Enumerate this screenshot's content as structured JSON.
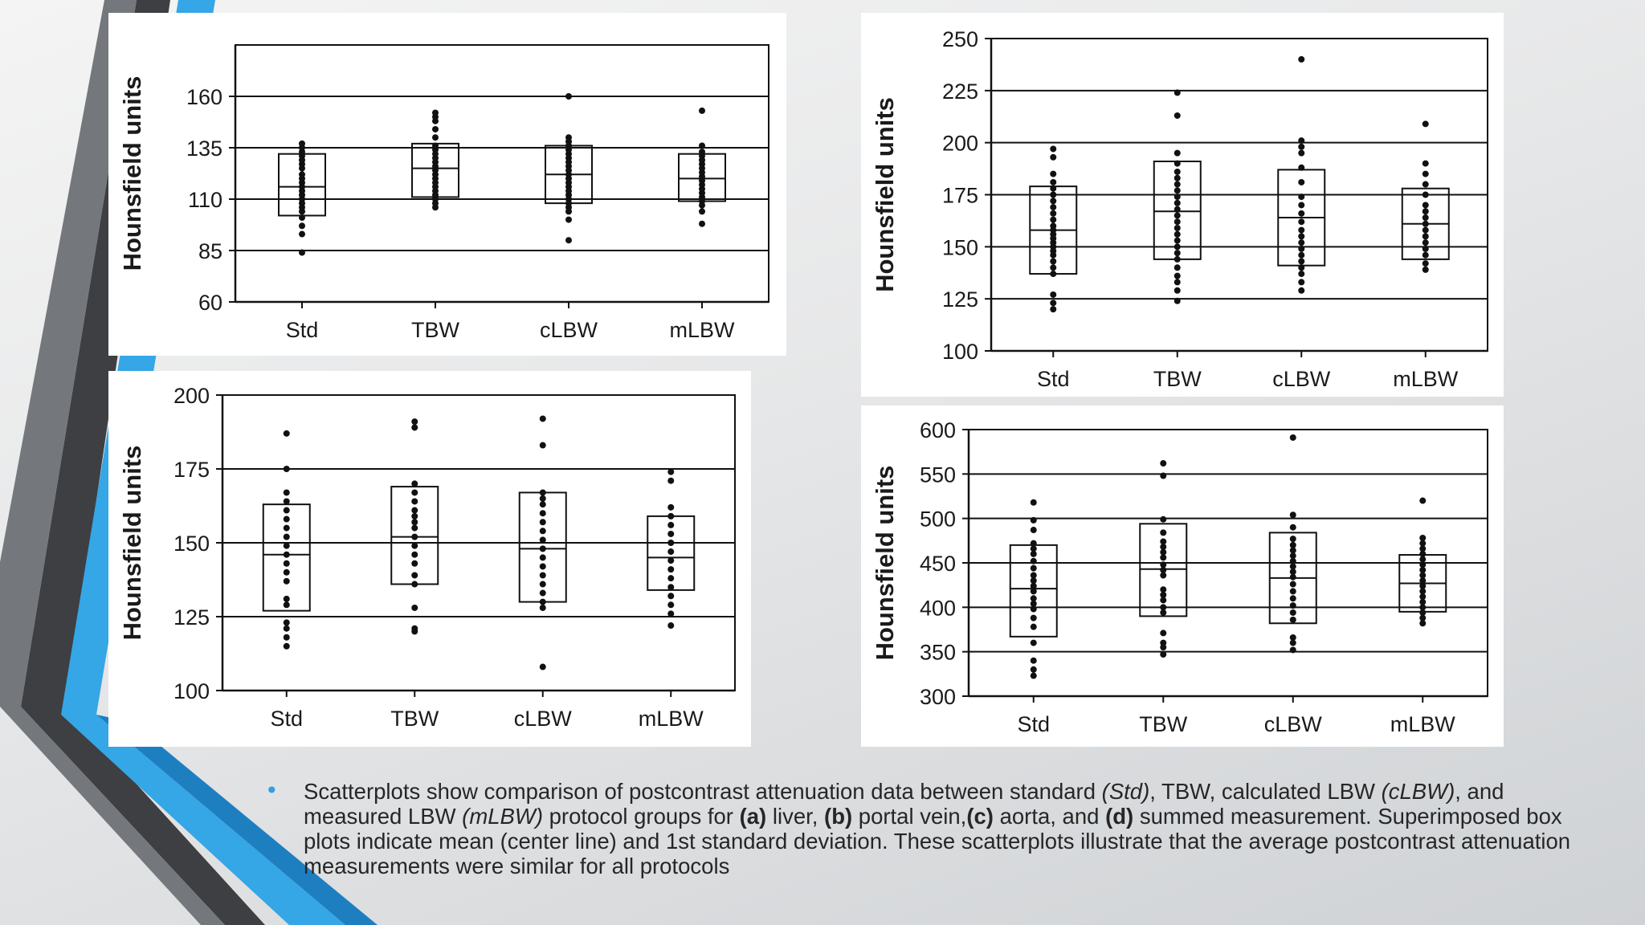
{
  "colors": {
    "accent_blue": "#35a6e6",
    "accent_blue_dark": "#1e7fc0",
    "chevron_dark": "#3d3f42",
    "chevron_gray": "#6c7074",
    "mark": "#111111"
  },
  "chart_data": [
    {
      "type": "scatter",
      "panel": "liver",
      "ylabel": "Hounsfield units",
      "categories": [
        "Std",
        "TBW",
        "cLBW",
        "mLBW"
      ],
      "ylim": [
        60,
        185
      ],
      "yticks": [
        60,
        85,
        110,
        135,
        160
      ],
      "grid": true,
      "boxes": [
        {
          "category": "Std",
          "low": 102,
          "mean": 116,
          "high": 132
        },
        {
          "category": "TBW",
          "low": 111,
          "mean": 125,
          "high": 137
        },
        {
          "category": "cLBW",
          "low": 108,
          "mean": 122,
          "high": 136
        },
        {
          "category": "mLBW",
          "low": 109,
          "mean": 120,
          "high": 132
        }
      ],
      "points": [
        {
          "category": "Std",
          "values": [
            84,
            93,
            97,
            101,
            104,
            106,
            108,
            110,
            112,
            114,
            116,
            118,
            120,
            122,
            125,
            127,
            129,
            131,
            133,
            135,
            137
          ]
        },
        {
          "category": "TBW",
          "values": [
            106,
            108,
            110,
            112,
            114,
            116,
            118,
            120,
            122,
            124,
            126,
            128,
            130,
            132,
            134,
            136,
            140,
            144,
            148,
            150,
            152
          ]
        },
        {
          "category": "cLBW",
          "values": [
            90,
            100,
            104,
            106,
            108,
            110,
            112,
            114,
            116,
            118,
            120,
            122,
            124,
            126,
            128,
            130,
            132,
            134,
            136,
            138,
            140,
            160
          ]
        },
        {
          "category": "mLBW",
          "values": [
            98,
            104,
            107,
            109,
            111,
            113,
            115,
            117,
            119,
            121,
            123,
            125,
            127,
            129,
            131,
            133,
            136,
            153
          ]
        }
      ]
    },
    {
      "type": "scatter",
      "panel": "portal vein",
      "ylabel": "Hounsfield units",
      "categories": [
        "Std",
        "TBW",
        "cLBW",
        "mLBW"
      ],
      "ylim": [
        100,
        250
      ],
      "yticks": [
        100,
        125,
        150,
        175,
        200,
        225,
        250
      ],
      "grid": true,
      "boxes": [
        {
          "category": "Std",
          "low": 137,
          "mean": 158,
          "high": 179
        },
        {
          "category": "TBW",
          "low": 144,
          "mean": 167,
          "high": 191
        },
        {
          "category": "cLBW",
          "low": 141,
          "mean": 164,
          "high": 187
        },
        {
          "category": "mLBW",
          "low": 144,
          "mean": 161,
          "high": 178
        }
      ],
      "points": [
        {
          "category": "Std",
          "values": [
            120,
            123,
            127,
            137,
            140,
            143,
            146,
            148,
            150,
            152,
            154,
            156,
            158,
            160,
            163,
            166,
            169,
            172,
            175,
            178,
            181,
            185,
            193,
            197
          ]
        },
        {
          "category": "TBW",
          "values": [
            124,
            129,
            133,
            136,
            140,
            144,
            147,
            150,
            153,
            156,
            159,
            162,
            165,
            168,
            171,
            174,
            177,
            180,
            183,
            186,
            190,
            195,
            213,
            224
          ]
        },
        {
          "category": "cLBW",
          "values": [
            129,
            133,
            137,
            140,
            143,
            146,
            149,
            152,
            155,
            158,
            162,
            166,
            170,
            174,
            181,
            188,
            195,
            198,
            201,
            240
          ]
        },
        {
          "category": "mLBW",
          "values": [
            139,
            142,
            146,
            149,
            152,
            155,
            158,
            161,
            164,
            167,
            170,
            175,
            180,
            185,
            190,
            209
          ]
        }
      ]
    },
    {
      "type": "scatter",
      "panel": "aorta",
      "ylabel": "Hounsfield units",
      "categories": [
        "Std",
        "TBW",
        "cLBW",
        "mLBW"
      ],
      "ylim": [
        100,
        200
      ],
      "yticks": [
        100,
        125,
        150,
        175,
        200
      ],
      "grid": true,
      "boxes": [
        {
          "category": "Std",
          "low": 127,
          "mean": 146,
          "high": 163
        },
        {
          "category": "TBW",
          "low": 136,
          "mean": 152,
          "high": 169
        },
        {
          "category": "cLBW",
          "low": 130,
          "mean": 148,
          "high": 167
        },
        {
          "category": "mLBW",
          "low": 134,
          "mean": 145,
          "high": 159
        }
      ],
      "points": [
        {
          "category": "Std",
          "values": [
            115,
            118,
            121,
            123,
            129,
            131,
            137,
            140,
            143,
            146,
            149,
            152,
            155,
            158,
            161,
            164,
            167,
            175,
            187
          ]
        },
        {
          "category": "TBW",
          "values": [
            120,
            121,
            128,
            136,
            139,
            143,
            146,
            149,
            152,
            155,
            157,
            159,
            161,
            164,
            167,
            170,
            189,
            191
          ]
        },
        {
          "category": "cLBW",
          "values": [
            108,
            128,
            130,
            133,
            136,
            139,
            142,
            145,
            148,
            151,
            154,
            157,
            160,
            163,
            165,
            167,
            183,
            192
          ]
        },
        {
          "category": "mLBW",
          "values": [
            122,
            126,
            129,
            132,
            135,
            138,
            141,
            144,
            147,
            150,
            153,
            156,
            159,
            162,
            171,
            174
          ]
        }
      ]
    },
    {
      "type": "scatter",
      "panel": "summed measurement",
      "ylabel": "Hounsfield units",
      "categories": [
        "Std",
        "TBW",
        "cLBW",
        "mLBW"
      ],
      "ylim": [
        300,
        600
      ],
      "yticks": [
        300,
        350,
        400,
        450,
        500,
        550,
        600
      ],
      "grid": true,
      "boxes": [
        {
          "category": "Std",
          "low": 367,
          "mean": 421,
          "high": 470
        },
        {
          "category": "TBW",
          "low": 390,
          "mean": 443,
          "high": 494
        },
        {
          "category": "cLBW",
          "low": 382,
          "mean": 433,
          "high": 484
        },
        {
          "category": "mLBW",
          "low": 395,
          "mean": 427,
          "high": 459
        }
      ],
      "points": [
        {
          "category": "Std",
          "values": [
            323,
            330,
            340,
            360,
            378,
            388,
            398,
            404,
            410,
            418,
            424,
            430,
            436,
            444,
            452,
            460,
            466,
            472,
            487,
            498,
            518
          ]
        },
        {
          "category": "TBW",
          "values": [
            347,
            355,
            360,
            371,
            394,
            400,
            408,
            414,
            420,
            436,
            442,
            448,
            456,
            462,
            468,
            474,
            484,
            499,
            548,
            562
          ]
        },
        {
          "category": "cLBW",
          "values": [
            352,
            360,
            366,
            386,
            394,
            402,
            410,
            418,
            426,
            434,
            440,
            446,
            452,
            458,
            464,
            470,
            477,
            490,
            504,
            591
          ]
        },
        {
          "category": "mLBW",
          "values": [
            382,
            388,
            394,
            400,
            406,
            412,
            418,
            424,
            430,
            436,
            442,
            448,
            454,
            460,
            466,
            472,
            478,
            520
          ]
        }
      ]
    }
  ],
  "caption": {
    "bullet": "•",
    "segments": [
      {
        "text": "Scatterplots show comparison of postcontrast attenuation data between standard ",
        "style": "normal"
      },
      {
        "text": "(Std)",
        "style": "italic"
      },
      {
        "text": ", TBW, calculated LBW ",
        "style": "normal"
      },
      {
        "text": "(cLBW)",
        "style": "italic"
      },
      {
        "text": ", and measured LBW ",
        "style": "normal"
      },
      {
        "text": "(mLBW)",
        "style": "italic"
      },
      {
        "text": " protocol groups for ",
        "style": "normal"
      },
      {
        "text": "(a)",
        "style": "bold"
      },
      {
        "text": " liver, ",
        "style": "normal"
      },
      {
        "text": "(b)",
        "style": "bold"
      },
      {
        "text": " portal vein,",
        "style": "normal"
      },
      {
        "text": "(c)",
        "style": "bold"
      },
      {
        "text": " aorta, and ",
        "style": "normal"
      },
      {
        "text": "(d)",
        "style": "bold"
      },
      {
        "text": " summed measurement. Superimposed box plots indicate mean (center line) and 1st standard deviation. These scatterplots illustrate that the average postcontrast attenuation measurements were similar for all protocols",
        "style": "normal"
      }
    ]
  }
}
